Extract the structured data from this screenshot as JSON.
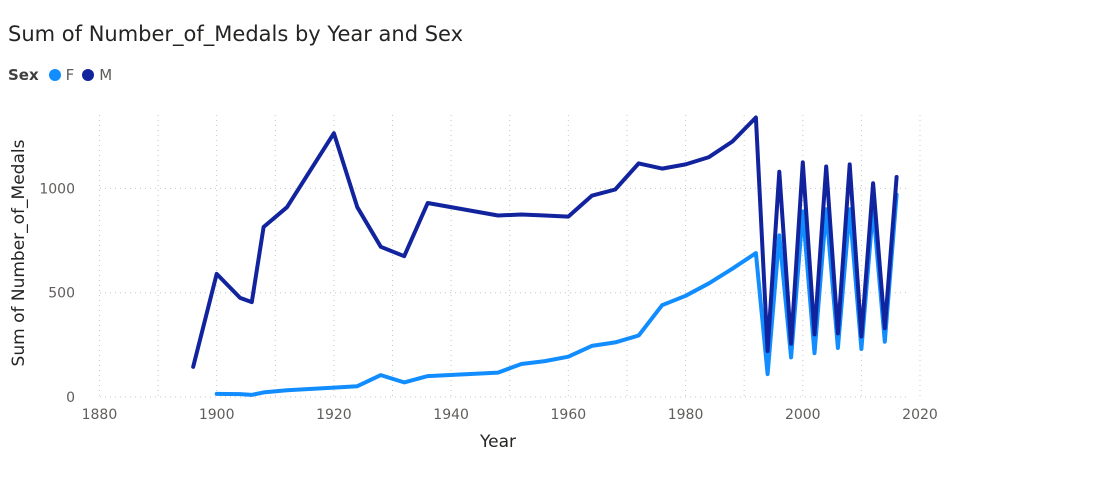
{
  "chart_data": {
    "type": "line",
    "title": "Sum of Number_of_Medals by Year and Sex",
    "legend_title": "Sex",
    "legend_position": "top-left",
    "xlabel": "Year",
    "ylabel": "Sum of Number_of_Medals",
    "xlim": [
      1876,
      2020
    ],
    "ylim": [
      0,
      1400
    ],
    "x_ticks": [
      "1880",
      "1900",
      "1920",
      "1940",
      "1960",
      "1980",
      "2000",
      "2020"
    ],
    "y_ticks": [
      "0",
      "500",
      "1000"
    ],
    "grid": "dotted",
    "series": [
      {
        "name": "F",
        "color": "#118DFF",
        "points": [
          [
            1900,
            15
          ],
          [
            1904,
            14
          ],
          [
            1906,
            10
          ],
          [
            1908,
            22
          ],
          [
            1912,
            32
          ],
          [
            1920,
            45
          ],
          [
            1924,
            52
          ],
          [
            1928,
            105
          ],
          [
            1932,
            70
          ],
          [
            1936,
            100
          ],
          [
            1948,
            117
          ],
          [
            1952,
            158
          ],
          [
            1956,
            172
          ],
          [
            1960,
            193
          ],
          [
            1964,
            245
          ],
          [
            1968,
            262
          ],
          [
            1972,
            295
          ],
          [
            1976,
            440
          ],
          [
            1980,
            485
          ],
          [
            1984,
            545
          ],
          [
            1988,
            615
          ],
          [
            1992,
            690
          ],
          [
            1994,
            110
          ],
          [
            1996,
            775
          ],
          [
            1998,
            190
          ],
          [
            2000,
            890
          ],
          [
            2002,
            210
          ],
          [
            2004,
            900
          ],
          [
            2006,
            235
          ],
          [
            2008,
            900
          ],
          [
            2010,
            230
          ],
          [
            2012,
            905
          ],
          [
            2014,
            265
          ],
          [
            2016,
            970
          ]
        ]
      },
      {
        "name": "M",
        "color": "#12239E",
        "points": [
          [
            1896,
            145
          ],
          [
            1900,
            590
          ],
          [
            1904,
            475
          ],
          [
            1906,
            455
          ],
          [
            1908,
            815
          ],
          [
            1912,
            910
          ],
          [
            1920,
            1265
          ],
          [
            1924,
            910
          ],
          [
            1928,
            720
          ],
          [
            1932,
            675
          ],
          [
            1936,
            930
          ],
          [
            1948,
            870
          ],
          [
            1952,
            875
          ],
          [
            1956,
            870
          ],
          [
            1960,
            865
          ],
          [
            1964,
            965
          ],
          [
            1968,
            995
          ],
          [
            1972,
            1120
          ],
          [
            1976,
            1095
          ],
          [
            1980,
            1115
          ],
          [
            1984,
            1150
          ],
          [
            1988,
            1225
          ],
          [
            1992,
            1340
          ],
          [
            1994,
            220
          ],
          [
            1996,
            1080
          ],
          [
            1998,
            255
          ],
          [
            2000,
            1125
          ],
          [
            2002,
            300
          ],
          [
            2004,
            1105
          ],
          [
            2006,
            305
          ],
          [
            2008,
            1115
          ],
          [
            2010,
            290
          ],
          [
            2012,
            1025
          ],
          [
            2014,
            330
          ],
          [
            2016,
            1055
          ]
        ]
      }
    ]
  }
}
